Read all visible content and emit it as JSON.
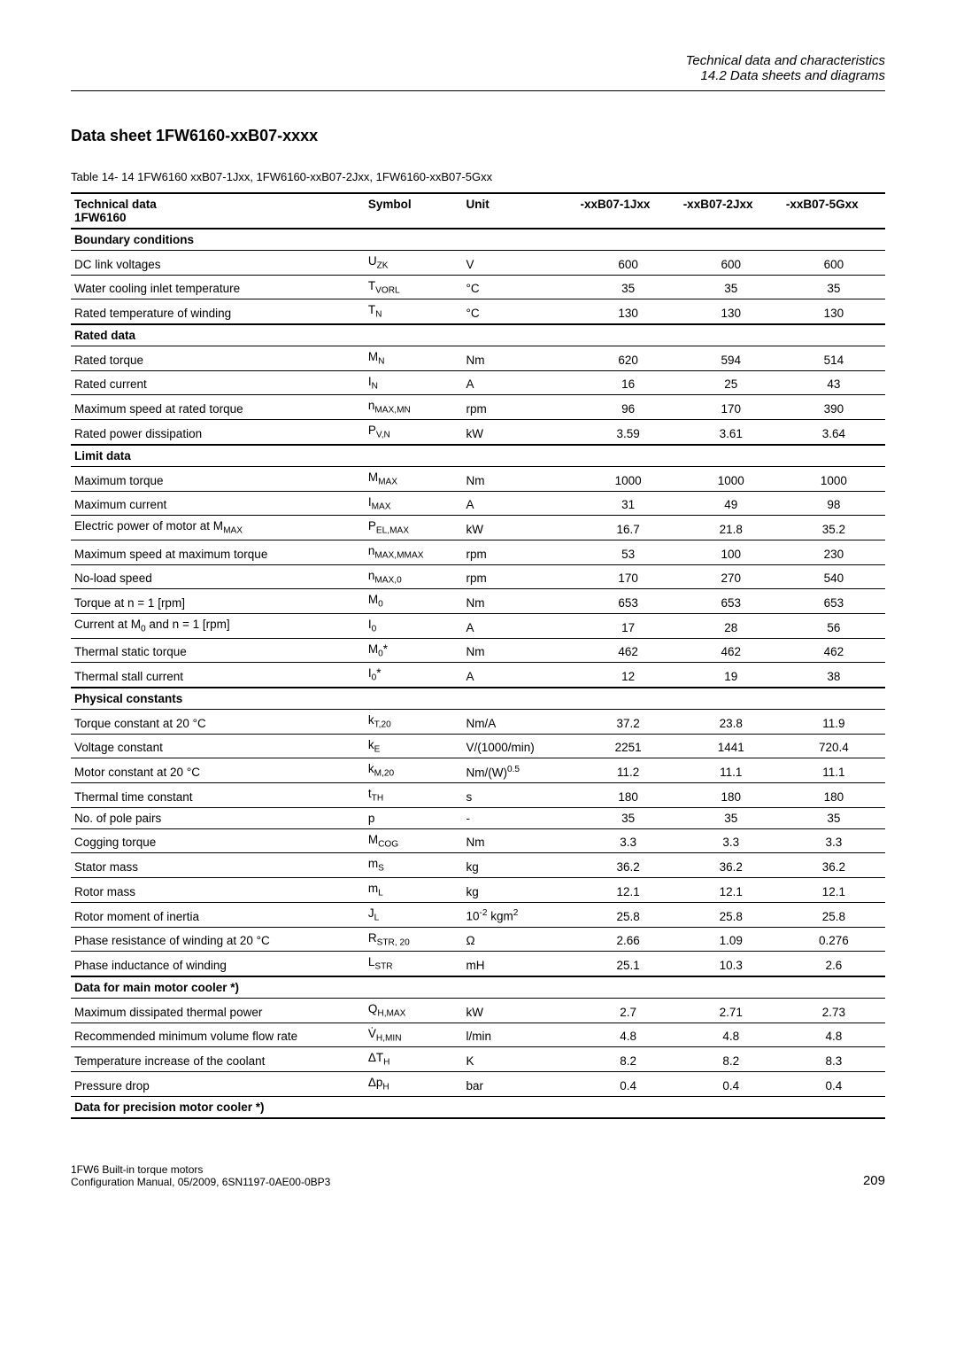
{
  "header": {
    "line1": "Technical data and characteristics",
    "line2": "14.2 Data sheets and diagrams"
  },
  "title": "Data sheet 1FW6160-xxB07-xxxx",
  "table_caption": "Table 14- 14   1FW6160 xxB07-1Jxx, 1FW6160-xxB07-2Jxx, 1FW6160-xxB07-5Gxx",
  "columns": {
    "label": "Technical data 1FW6160",
    "symbol": "Symbol",
    "unit": "Unit",
    "c1": "-xxB07-1Jxx",
    "c2": "-xxB07-2Jxx",
    "c3": "-xxB07-5Gxx"
  },
  "sections": [
    {
      "title": "Boundary conditions",
      "rows": [
        {
          "label": "DC link voltages",
          "sym": "U<sub>ZK</sub>",
          "unit": "V",
          "v": [
            "600",
            "600",
            "600"
          ]
        },
        {
          "label": "Water cooling inlet temperature",
          "sym": "T<sub>VORL</sub>",
          "unit": "°C",
          "v": [
            "35",
            "35",
            "35"
          ]
        },
        {
          "label": "Rated temperature of winding",
          "sym": "T<sub>N</sub>",
          "unit": "°C",
          "v": [
            "130",
            "130",
            "130"
          ]
        }
      ]
    },
    {
      "title": "Rated data",
      "rows": [
        {
          "label": "Rated torque",
          "sym": "M<sub>N</sub>",
          "unit": "Nm",
          "v": [
            "620",
            "594",
            "514"
          ]
        },
        {
          "label": "Rated current",
          "sym": "I<sub>N</sub>",
          "unit": "A",
          "v": [
            "16",
            "25",
            "43"
          ]
        },
        {
          "label": "Maximum speed at rated torque",
          "sym": "n<sub>MAX,MN</sub>",
          "unit": "rpm",
          "v": [
            "96",
            "170",
            "390"
          ]
        },
        {
          "label": "Rated power dissipation",
          "sym": "P<sub>V,N</sub>",
          "unit": "kW",
          "v": [
            "3.59",
            "3.61",
            "3.64"
          ]
        }
      ]
    },
    {
      "title": "Limit data",
      "rows": [
        {
          "label": "Maximum torque",
          "sym": "M<sub>MAX</sub>",
          "unit": "Nm",
          "v": [
            "1000",
            "1000",
            "1000"
          ]
        },
        {
          "label": "Maximum current",
          "sym": "I<sub>MAX</sub>",
          "unit": "A",
          "v": [
            "31",
            "49",
            "98"
          ]
        },
        {
          "label": "Electric power of motor at M<sub>MAX</sub>",
          "sym": "P<sub>EL,MAX</sub>",
          "unit": "kW",
          "v": [
            "16.7",
            "21.8",
            "35.2"
          ]
        },
        {
          "label": "Maximum speed at maximum torque",
          "sym": "n<sub>MAX,MMAX</sub>",
          "unit": "rpm",
          "v": [
            "53",
            "100",
            "230"
          ]
        },
        {
          "label": "No-load speed",
          "sym": "n<sub>MAX,0</sub>",
          "unit": "rpm",
          "v": [
            "170",
            "270",
            "540"
          ]
        },
        {
          "label": "Torque at n = 1 [rpm]",
          "sym": "M<sub>0</sub>",
          "unit": "Nm",
          "v": [
            "653",
            "653",
            "653"
          ]
        },
        {
          "label": "Current at M<sub>0</sub> and n = 1 [rpm]",
          "sym": "I<sub>0</sub>",
          "unit": "A",
          "v": [
            "17",
            "28",
            "56"
          ]
        },
        {
          "label": "Thermal static torque",
          "sym": "M<sub>0</sub>*",
          "unit": "Nm",
          "v": [
            "462",
            "462",
            "462"
          ]
        },
        {
          "label": "Thermal stall current",
          "sym": "I<sub>0</sub>*",
          "unit": "A",
          "v": [
            "12",
            "19",
            "38"
          ]
        }
      ]
    },
    {
      "title": "Physical constants",
      "rows": [
        {
          "label": "Torque constant at 20 °C",
          "sym": "k<sub>T,20</sub>",
          "unit": "Nm/A",
          "v": [
            "37.2",
            "23.8",
            "11.9"
          ]
        },
        {
          "label": "Voltage constant",
          "sym": "k<sub>E</sub>",
          "unit": "V/(1000/min)",
          "v": [
            "2251",
            "1441",
            "720.4"
          ]
        },
        {
          "label": "Motor constant at 20 °C",
          "sym": "k<sub>M,20</sub>",
          "unit": "Nm/(W)<sup>0.5</sup>",
          "v": [
            "11.2",
            "11.1",
            "11.1"
          ]
        },
        {
          "label": "Thermal time constant",
          "sym": "t<sub>TH</sub>",
          "unit": "s",
          "v": [
            "180",
            "180",
            "180"
          ]
        },
        {
          "label": "No. of pole pairs",
          "sym": "p",
          "unit": "-",
          "v": [
            "35",
            "35",
            "35"
          ]
        },
        {
          "label": "Cogging torque",
          "sym": "M<sub>COG</sub>",
          "unit": "Nm",
          "v": [
            "3.3",
            "3.3",
            "3.3"
          ]
        },
        {
          "label": "Stator mass",
          "sym": "m<sub>S</sub>",
          "unit": "kg",
          "v": [
            "36.2",
            "36.2",
            "36.2"
          ]
        },
        {
          "label": "Rotor mass",
          "sym": "m<sub>L</sub>",
          "unit": "kg",
          "v": [
            "12.1",
            "12.1",
            "12.1"
          ]
        },
        {
          "label": "Rotor moment of inertia",
          "sym": "J<sub>L</sub>",
          "unit": "10<sup>-2</sup> kgm<sup>2</sup>",
          "v": [
            "25.8",
            "25.8",
            "25.8"
          ]
        },
        {
          "label": "Phase resistance of winding at 20 °C",
          "sym": "R<sub>STR, 20</sub>",
          "unit": "Ω",
          "v": [
            "2.66",
            "1.09",
            "0.276"
          ]
        },
        {
          "label": "Phase inductance of winding",
          "sym": "L<sub>STR</sub>",
          "unit": "mH",
          "v": [
            "25.1",
            "10.3",
            "2.6"
          ]
        }
      ]
    },
    {
      "title": "Data for main motor cooler *)",
      "rows": [
        {
          "label": "Maximum dissipated thermal power",
          "sym": "Q<sub>H,MAX</sub>",
          "unit": "kW",
          "v": [
            "2.7",
            "2.71",
            "2.73"
          ]
        },
        {
          "label": "Recommended minimum volume flow rate",
          "sym": "V̇<sub>H,MIN</sub>",
          "unit": "l/min",
          "v": [
            "4.8",
            "4.8",
            "4.8"
          ]
        },
        {
          "label": "Temperature increase of the coolant",
          "sym": "ΔT<sub>H</sub>",
          "unit": "K",
          "v": [
            "8.2",
            "8.2",
            "8.3"
          ]
        },
        {
          "label": "Pressure drop",
          "sym": "Δp<sub>H</sub>",
          "unit": "bar",
          "v": [
            "0.4",
            "0.4",
            "0.4"
          ]
        }
      ]
    }
  ],
  "final_section": "Data for precision motor cooler *)",
  "footer": {
    "line1": "1FW6 Built-in torque motors",
    "line2": "Configuration Manual, 05/2009, 6SN1197-0AE00-0BP3",
    "page": "209"
  },
  "styling": {
    "body_width": 1080,
    "body_padding": "60px 80px 40px 80px",
    "font_family": "Arial, Helvetica, sans-serif",
    "base_fontsize": 14,
    "title_fontsize": 18,
    "caption_fontsize": 13,
    "table_fontsize": 13.5,
    "footer_fontsize": 12,
    "pagenum_fontsize": 15,
    "rule_color": "#000000",
    "text_color": "#000000",
    "background_color": "#ffffff",
    "col_widths": {
      "label": "36%",
      "symbol": "12%",
      "unit": "14%",
      "value": "12.6%"
    }
  }
}
